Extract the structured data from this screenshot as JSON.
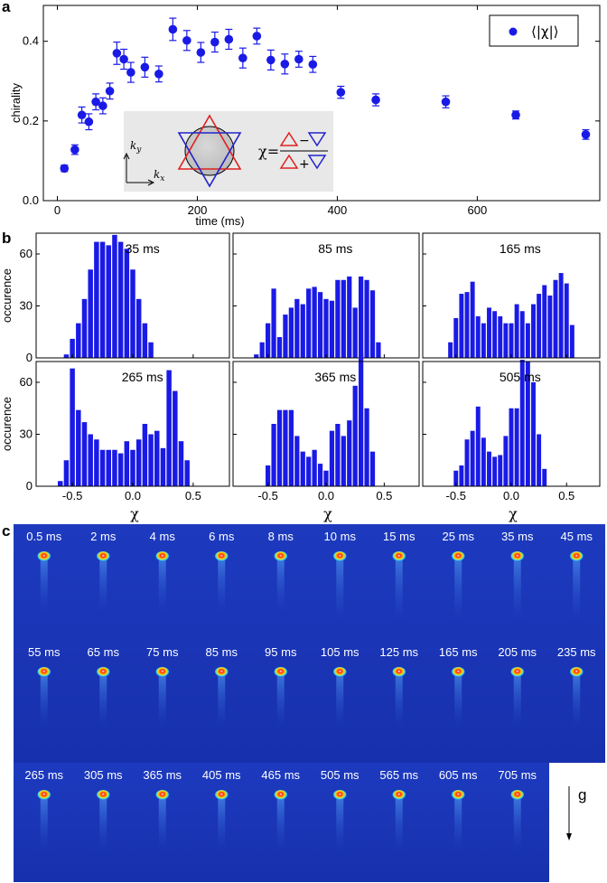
{
  "panels": {
    "a": "a",
    "b": "b",
    "c": "c"
  },
  "chart_data": [
    {
      "type": "scatter",
      "xlabel": "time (ms)",
      "ylabel": "chirality",
      "xlim": [
        -20,
        775
      ],
      "ylim": [
        0,
        0.49
      ],
      "xticks": [
        0,
        200,
        400,
        600
      ],
      "yticks": [
        0.0,
        0.2,
        0.4
      ],
      "ytick_labels": [
        "0.0",
        "0.2",
        "0.4"
      ],
      "grid": false,
      "legend": {
        "label": "⟨|χ|⟩",
        "placement": "top-right"
      },
      "inset": {
        "ky": "k",
        "ky_sub": "y",
        "kx": "k",
        "kx_sub": "x",
        "chi_eq": "χ=",
        "minus": "−",
        "plus": "+"
      },
      "colors": {
        "points": "#1a1ae6",
        "inset_red": "#e02020",
        "inset_blue": "#2222cc",
        "inset_bg": "#e8e8e8"
      },
      "series": [
        {
          "name": "⟨|χ|⟩",
          "x": [
            10,
            25,
            35,
            45,
            55,
            65,
            75,
            85,
            95,
            105,
            125,
            145,
            165,
            185,
            205,
            225,
            245,
            265,
            285,
            305,
            325,
            345,
            365,
            405,
            455,
            555,
            655,
            755
          ],
          "y": [
            0.081,
            0.128,
            0.215,
            0.198,
            0.248,
            0.238,
            0.275,
            0.37,
            0.355,
            0.322,
            0.335,
            0.318,
            0.43,
            0.402,
            0.372,
            0.398,
            0.405,
            0.358,
            0.413,
            0.353,
            0.343,
            0.355,
            0.342,
            0.272,
            0.253,
            0.248,
            0.215,
            0.166
          ],
          "err": [
            0.008,
            0.012,
            0.02,
            0.02,
            0.02,
            0.02,
            0.02,
            0.028,
            0.025,
            0.025,
            0.025,
            0.02,
            0.028,
            0.025,
            0.025,
            0.025,
            0.025,
            0.025,
            0.02,
            0.025,
            0.025,
            0.02,
            0.02,
            0.015,
            0.015,
            0.015,
            0.01,
            0.012
          ]
        }
      ]
    },
    {
      "type": "bar",
      "xlabel": "χ",
      "ylabel": "occurence",
      "xlim": [
        -0.8,
        0.8
      ],
      "xticks": [
        -0.5,
        0.0,
        0.5
      ],
      "xtick_labels": [
        "-0.5",
        "0.0",
        "0.5"
      ],
      "ylim": [
        0,
        72
      ],
      "yticks": [
        0,
        30,
        60
      ],
      "bin_width": 0.05,
      "bin_start": -0.725,
      "color": "#1a1ae6",
      "histograms": [
        {
          "label": "35 ms",
          "values": [
            0,
            0,
            0,
            2,
            11,
            20,
            34,
            51,
            67,
            67,
            65,
            71,
            67,
            63,
            51,
            34,
            20,
            9,
            0,
            0,
            0,
            0,
            0,
            0,
            0,
            0,
            0,
            0,
            0,
            0
          ]
        },
        {
          "label": "85 ms",
          "values": [
            0,
            0,
            2,
            9,
            20,
            40,
            12,
            25,
            29,
            34,
            31,
            40,
            41,
            38,
            34,
            33,
            45,
            45,
            47,
            29,
            47,
            45,
            39,
            9,
            0,
            0,
            0,
            0,
            0,
            0
          ]
        },
        {
          "label": "165 ms",
          "values": [
            0,
            0,
            0,
            9,
            23,
            37,
            38,
            44,
            24,
            20,
            29,
            27,
            24,
            20,
            20,
            31,
            27,
            20,
            31,
            37,
            42,
            36,
            45,
            49,
            43,
            19,
            0,
            0,
            0,
            0
          ]
        },
        {
          "label": "265 ms",
          "values": [
            0,
            0,
            3,
            15,
            68,
            44,
            37,
            30,
            27,
            21,
            21,
            21,
            19,
            26,
            21,
            27,
            36,
            30,
            32,
            22,
            67,
            55,
            26,
            15,
            0,
            0,
            0,
            0,
            0,
            0
          ]
        },
        {
          "label": "365 ms",
          "values": [
            0,
            0,
            0,
            0,
            12,
            36,
            44,
            44,
            44,
            29,
            20,
            17,
            21,
            13,
            9,
            32,
            36,
            29,
            38,
            58,
            77,
            45,
            20,
            0,
            0,
            0,
            0,
            0,
            0,
            0
          ]
        },
        {
          "label": "505 ms",
          "values": [
            0,
            0,
            0,
            0,
            9,
            12,
            27,
            32,
            46,
            28,
            20,
            17,
            18,
            29,
            45,
            45,
            73,
            72,
            60,
            30,
            10,
            0,
            0,
            0,
            0,
            0,
            0,
            0,
            0,
            0
          ]
        }
      ]
    }
  ],
  "images": {
    "row1": [
      "0.5 ms",
      "2 ms",
      "4 ms",
      "6 ms",
      "8 ms",
      "10 ms",
      "15 ms",
      "25 ms",
      "35 ms",
      "45 ms"
    ],
    "row2": [
      "55 ms",
      "65 ms",
      "75 ms",
      "85 ms",
      "95 ms",
      "105 ms",
      "125 ms",
      "165 ms",
      "205 ms",
      "235 ms"
    ],
    "row3": [
      "265 ms",
      "305 ms",
      "365 ms",
      "405 ms",
      "465 ms",
      "505 ms",
      "565 ms",
      "605 ms",
      "705 ms"
    ],
    "gravity_label": "g",
    "colors": {
      "background": "#1a36b8",
      "cloud_core": "#ffffff",
      "cloud_hot": "#ff2a00",
      "cloud_warm": "#ffd200",
      "cloud_edge": "#30d8ff"
    }
  }
}
